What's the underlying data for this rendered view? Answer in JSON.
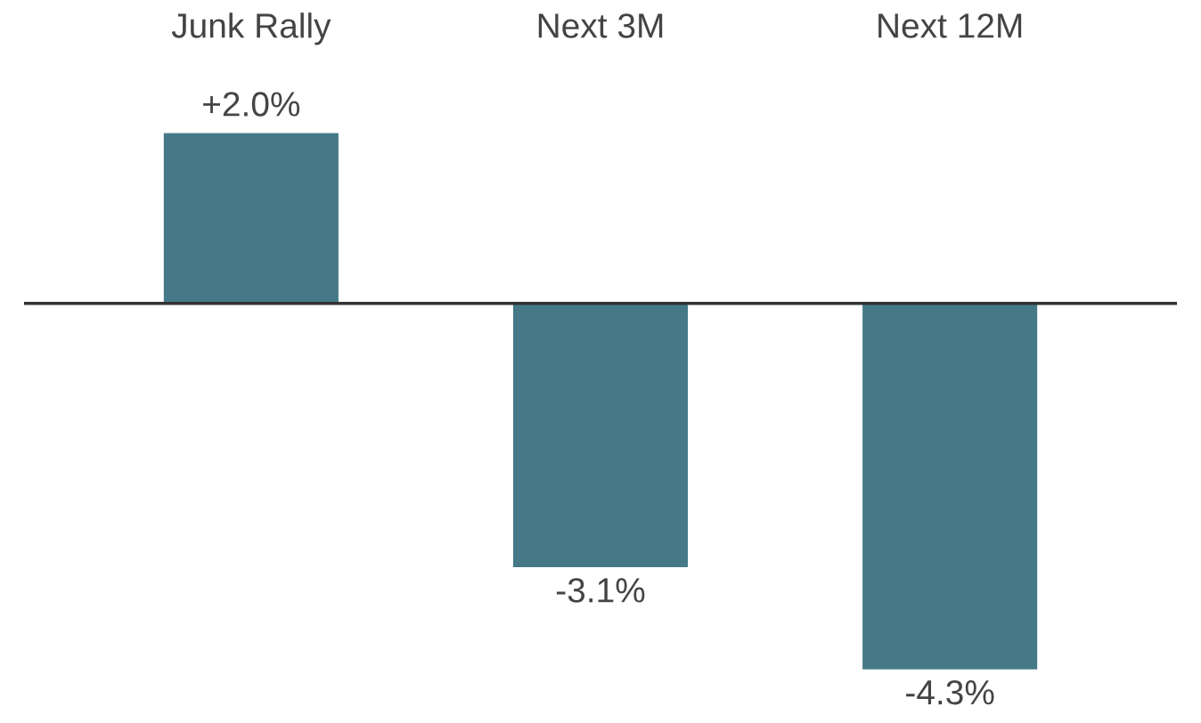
{
  "chart_data": {
    "type": "bar",
    "categories": [
      "Junk Rally",
      "Next 3M",
      "Next 12M"
    ],
    "values": [
      2.0,
      -3.1,
      -4.3
    ],
    "value_labels": [
      "+2.0%",
      "-3.1%",
      "-4.3%"
    ],
    "color": "#457988",
    "grid": false,
    "legend": false
  }
}
